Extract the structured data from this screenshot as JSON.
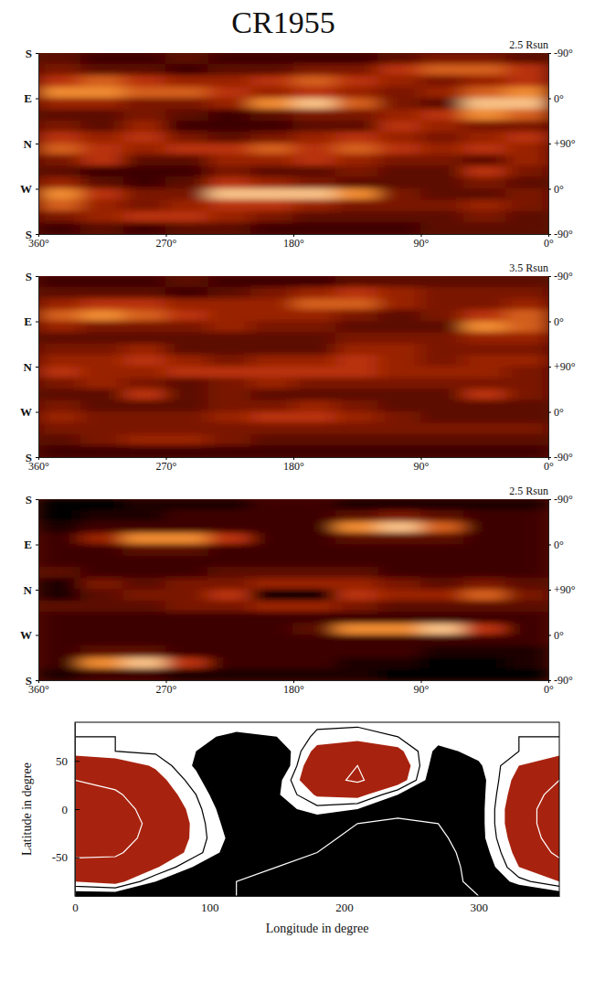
{
  "title": "CR1955",
  "chart_data": [
    {
      "type": "heatmap",
      "title": "2.5 Rsun",
      "xlim": [
        360,
        0
      ],
      "xticks": [
        {
          "value": 360,
          "label": "360°"
        },
        {
          "value": 270,
          "label": "270°"
        },
        {
          "value": 180,
          "label": "180°"
        },
        {
          "value": 90,
          "label": "90°"
        },
        {
          "value": 0,
          "label": "0°"
        }
      ],
      "ylim": [
        180,
        -180
      ],
      "yticks": [
        {
          "value": 180,
          "label": "S"
        },
        {
          "value": 90,
          "label": "E"
        },
        {
          "value": 0,
          "label": "N"
        },
        {
          "value": -90,
          "label": "W"
        },
        {
          "value": -180,
          "label": "S"
        }
      ],
      "y2_labels": [
        "-90°",
        "0°",
        "+90°",
        "0°",
        "-90°"
      ],
      "zlim": [
        0,
        10
      ],
      "z": [
        [
          3,
          2,
          2,
          3,
          2,
          2,
          2,
          2,
          3,
          4,
          4,
          3
        ],
        [
          4,
          3,
          3,
          2,
          3,
          3,
          4,
          4,
          6,
          7,
          7,
          6
        ],
        [
          6,
          7,
          6,
          5,
          5,
          6,
          7,
          6,
          5,
          4,
          5,
          6
        ],
        [
          8,
          8,
          7,
          7,
          6,
          5,
          6,
          5,
          4,
          5,
          7,
          8
        ],
        [
          5,
          5,
          4,
          4,
          5,
          8,
          9,
          7,
          4,
          3,
          9,
          9
        ],
        [
          3,
          3,
          4,
          3,
          2,
          3,
          4,
          4,
          5,
          6,
          8,
          7
        ],
        [
          4,
          3,
          5,
          2,
          2,
          2,
          3,
          3,
          6,
          5,
          4,
          4
        ],
        [
          6,
          5,
          6,
          4,
          3,
          4,
          5,
          6,
          5,
          4,
          5,
          6
        ],
        [
          7,
          6,
          5,
          6,
          6,
          7,
          6,
          7,
          6,
          5,
          6,
          5
        ],
        [
          4,
          6,
          3,
          3,
          5,
          5,
          6,
          5,
          4,
          4,
          3,
          5
        ],
        [
          3,
          2,
          2,
          2,
          4,
          3,
          3,
          4,
          3,
          3,
          6,
          4
        ],
        [
          5,
          3,
          2,
          3,
          6,
          5,
          4,
          3,
          3,
          3,
          4,
          3
        ],
        [
          8,
          6,
          4,
          4,
          9,
          9,
          9,
          8,
          4,
          3,
          3,
          4
        ],
        [
          7,
          5,
          4,
          5,
          6,
          6,
          5,
          4,
          4,
          4,
          5,
          4
        ],
        [
          4,
          5,
          6,
          6,
          5,
          4,
          3,
          3,
          3,
          3,
          4,
          3
        ],
        [
          2,
          3,
          2,
          3,
          3,
          2,
          2,
          2,
          2,
          3,
          3,
          3
        ]
      ]
    },
    {
      "type": "heatmap",
      "title": "3.5 Rsun",
      "xlim": [
        360,
        0
      ],
      "xticks": [
        {
          "value": 360,
          "label": "360°"
        },
        {
          "value": 270,
          "label": "270°"
        },
        {
          "value": 180,
          "label": "180°"
        },
        {
          "value": 90,
          "label": "90°"
        },
        {
          "value": 0,
          "label": "0°"
        }
      ],
      "ylim": [
        180,
        -180
      ],
      "yticks": [
        {
          "value": 180,
          "label": "S"
        },
        {
          "value": 90,
          "label": "E"
        },
        {
          "value": 0,
          "label": "N"
        },
        {
          "value": -90,
          "label": "W"
        },
        {
          "value": -180,
          "label": "S"
        }
      ],
      "y2_labels": [
        "-90°",
        "0°",
        "+90°",
        "0°",
        "-90°"
      ],
      "zlim": [
        0,
        10
      ],
      "z": [
        [
          2,
          2,
          2,
          3,
          2,
          2,
          2,
          3,
          3,
          3,
          3,
          3
        ],
        [
          3,
          3,
          3,
          2,
          3,
          4,
          5,
          6,
          5,
          4,
          4,
          4
        ],
        [
          5,
          6,
          6,
          5,
          5,
          5,
          7,
          7,
          5,
          4,
          4,
          5
        ],
        [
          7,
          8,
          7,
          6,
          5,
          5,
          5,
          4,
          3,
          4,
          6,
          7
        ],
        [
          5,
          4,
          4,
          4,
          5,
          4,
          4,
          3,
          3,
          3,
          8,
          7
        ],
        [
          3,
          3,
          3,
          3,
          3,
          3,
          3,
          4,
          4,
          4,
          5,
          5
        ],
        [
          4,
          4,
          5,
          3,
          3,
          3,
          3,
          5,
          5,
          4,
          4,
          4
        ],
        [
          5,
          5,
          6,
          5,
          4,
          5,
          5,
          6,
          5,
          4,
          5,
          5
        ],
        [
          6,
          5,
          5,
          6,
          6,
          6,
          6,
          6,
          5,
          5,
          5,
          4
        ],
        [
          4,
          5,
          4,
          3,
          4,
          5,
          4,
          4,
          4,
          4,
          4,
          4
        ],
        [
          3,
          3,
          6,
          3,
          4,
          3,
          3,
          3,
          3,
          3,
          6,
          4
        ],
        [
          4,
          3,
          3,
          3,
          4,
          4,
          5,
          4,
          3,
          3,
          3,
          3
        ],
        [
          5,
          4,
          4,
          4,
          5,
          6,
          6,
          5,
          4,
          3,
          3,
          3
        ],
        [
          4,
          4,
          4,
          4,
          4,
          4,
          4,
          4,
          4,
          4,
          4,
          4
        ],
        [
          3,
          4,
          5,
          5,
          4,
          3,
          3,
          3,
          3,
          3,
          3,
          3
        ],
        [
          2,
          2,
          2,
          2,
          2,
          2,
          2,
          2,
          2,
          2,
          2,
          2
        ]
      ]
    },
    {
      "type": "heatmap",
      "title": "2.5 Rsun",
      "xlim": [
        360,
        0
      ],
      "xticks": [
        {
          "value": 360,
          "label": "360°"
        },
        {
          "value": 270,
          "label": "270°"
        },
        {
          "value": 180,
          "label": "180°"
        },
        {
          "value": 90,
          "label": "90°"
        },
        {
          "value": 0,
          "label": "0°"
        }
      ],
      "ylim": [
        180,
        -180
      ],
      "yticks": [
        {
          "value": 180,
          "label": "S"
        },
        {
          "value": 90,
          "label": "E"
        },
        {
          "value": 0,
          "label": "N"
        },
        {
          "value": -90,
          "label": "W"
        },
        {
          "value": -180,
          "label": "S"
        }
      ],
      "y2_labels": [
        "-90°",
        "0°",
        "+90°",
        "0°",
        "-90°"
      ],
      "zlim": [
        0,
        10
      ],
      "z": [
        [
          0,
          0,
          1,
          1,
          1,
          2,
          2,
          1,
          1,
          1,
          1,
          1
        ],
        [
          0,
          1,
          1,
          2,
          2,
          2,
          2,
          3,
          4,
          3,
          2,
          2
        ],
        [
          1,
          2,
          2,
          2,
          2,
          2,
          2,
          8,
          9,
          7,
          2,
          2
        ],
        [
          2,
          5,
          8,
          8,
          6,
          2,
          2,
          3,
          3,
          3,
          2,
          2
        ],
        [
          2,
          2,
          3,
          3,
          2,
          2,
          2,
          2,
          2,
          2,
          2,
          2
        ],
        [
          2,
          2,
          2,
          2,
          2,
          2,
          2,
          2,
          2,
          2,
          2,
          2
        ],
        [
          3,
          2,
          2,
          2,
          3,
          3,
          3,
          3,
          2,
          2,
          2,
          2
        ],
        [
          1,
          4,
          3,
          4,
          4,
          5,
          5,
          5,
          4,
          3,
          4,
          3
        ],
        [
          1,
          3,
          4,
          4,
          6,
          0,
          0,
          6,
          5,
          5,
          7,
          4
        ],
        [
          3,
          3,
          3,
          4,
          4,
          5,
          5,
          4,
          3,
          3,
          3,
          3
        ],
        [
          2,
          2,
          2,
          2,
          2,
          2,
          2,
          2,
          2,
          2,
          2,
          2
        ],
        [
          2,
          2,
          2,
          2,
          2,
          2,
          3,
          8,
          8,
          9,
          6,
          2
        ],
        [
          2,
          2,
          2,
          2,
          2,
          2,
          2,
          2,
          2,
          2,
          2,
          2
        ],
        [
          2,
          3,
          3,
          2,
          2,
          2,
          2,
          2,
          2,
          1,
          1,
          1
        ],
        [
          2,
          8,
          9,
          6,
          2,
          2,
          2,
          1,
          1,
          0,
          0,
          1
        ],
        [
          1,
          2,
          2,
          1,
          1,
          1,
          1,
          1,
          0,
          0,
          0,
          0
        ]
      ]
    },
    {
      "type": "contour",
      "xlabel": "Longitude in degree",
      "ylabel": "Latitude in degree",
      "xlim": [
        0,
        360
      ],
      "ylim": [
        -90,
        90
      ],
      "xticks": [
        0,
        100,
        200,
        300
      ],
      "yticks": [
        -50,
        0,
        50
      ],
      "x": [
        0,
        30,
        60,
        90,
        120,
        150,
        180,
        210,
        240,
        270,
        300,
        330,
        360
      ],
      "y": [
        -90,
        -75,
        -60,
        -45,
        -30,
        -15,
        0,
        15,
        30,
        45,
        60,
        75,
        90
      ],
      "z": [
        [
          -1,
          -1,
          -1.5,
          -2,
          -2,
          -2.5,
          -3,
          -3,
          -3,
          -2.5,
          -2,
          -1.5,
          -1
        ],
        [
          0.5,
          0.8,
          -0.5,
          -1.5,
          -2,
          -2.5,
          -3,
          -3.2,
          -3.2,
          -2.8,
          -1.5,
          -0.2,
          0.5
        ],
        [
          1.5,
          1.5,
          0.6,
          -0.6,
          -1.5,
          -2,
          -2.5,
          -3,
          -3.2,
          -3,
          -1.2,
          0.5,
          1.5
        ],
        [
          2.3,
          2.2,
          1.2,
          0.2,
          -1,
          -1.5,
          -2,
          -2.7,
          -3,
          -2.8,
          -1,
          0.8,
          2.3
        ],
        [
          2.8,
          2.6,
          1.5,
          0.3,
          -0.8,
          -1.2,
          -1.6,
          -2.4,
          -2.8,
          -2.4,
          -0.8,
          1,
          2.8
        ],
        [
          3,
          2.8,
          1.6,
          0.3,
          -1,
          -1,
          -1,
          -2,
          -2.3,
          -2,
          -0.8,
          1.2,
          3
        ],
        [
          3,
          2.6,
          1.4,
          0.2,
          -1.2,
          -0.8,
          -0.2,
          -0.5,
          -1.5,
          -1.6,
          -0.8,
          1.2,
          3
        ],
        [
          2.6,
          2.2,
          1.1,
          0,
          -1.5,
          -0.6,
          0.6,
          0.8,
          -0.5,
          -1.4,
          -0.8,
          1,
          2.6
        ],
        [
          2,
          1.6,
          0.8,
          -0.3,
          -1.8,
          -0.8,
          1.5,
          2.2,
          1,
          -1.2,
          -0.8,
          0.8,
          2
        ],
        [
          1.2,
          1,
          0.4,
          -0.6,
          -2,
          -1.5,
          1.5,
          2,
          1.2,
          -1,
          -0.6,
          0.5,
          1.2
        ],
        [
          0.2,
          0,
          -0.1,
          -0.5,
          -1.8,
          -1.2,
          0.8,
          1.2,
          0.7,
          -0.7,
          -0.3,
          0,
          0.2
        ],
        [
          0,
          0,
          -0.1,
          -0.3,
          -0.7,
          -0.5,
          0.1,
          0.2,
          0,
          -0.2,
          -0.1,
          0,
          0
        ],
        [
          -0.1,
          -0.1,
          -0.1,
          -0.1,
          -0.1,
          -0.1,
          -0.1,
          -0.1,
          -0.1,
          -0.1,
          -0.1,
          -0.1,
          -0.1
        ]
      ],
      "fill_levels": [
        -0.5,
        0.5
      ],
      "colors": [
        "#000000",
        "#a8230f"
      ],
      "line_levels": [
        -2,
        0,
        2
      ]
    }
  ]
}
